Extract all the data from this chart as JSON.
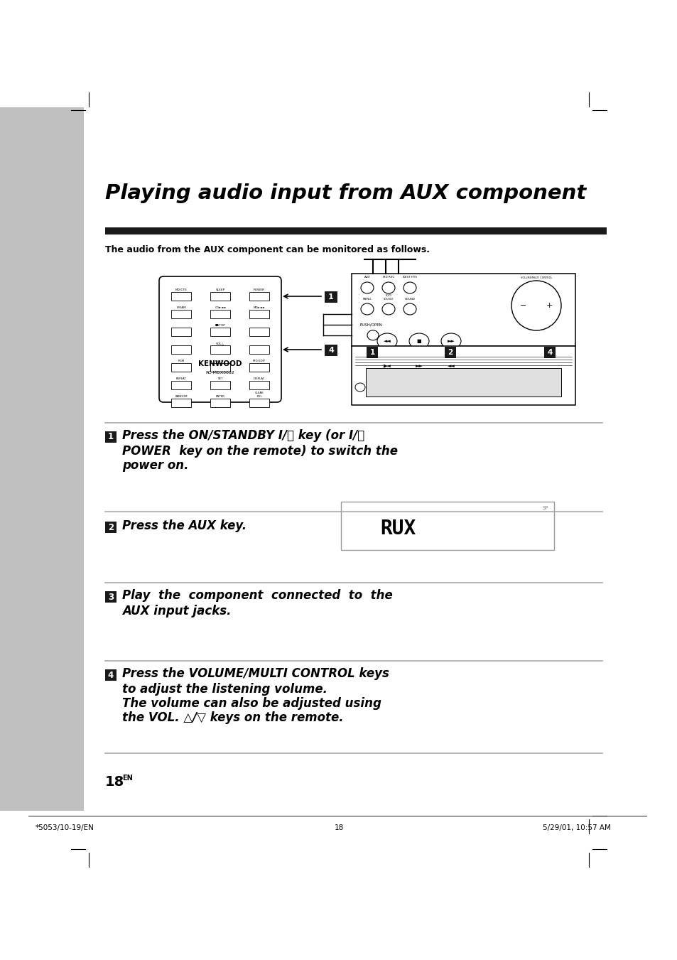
{
  "page_bg": "#ffffff",
  "gray_sidebar_color": "#c0c0c0",
  "title": "Playing audio input from AUX component",
  "subtitle": "The audio from the AUX component can be monitored as follows.",
  "step1_line1": "Press the ON/STANDBY Ⅰ/⌛ key (or Ⅰ/⌛",
  "step1_line2": "POWER  key on the remote) to switch the",
  "step1_line3": "power on.",
  "step2_text": "Press the AUX key.",
  "step3_line1": "Play  the  component  connected  to  the",
  "step3_line2": "AUX input jacks.",
  "step4_line1": "Press the VOLUME/MULTI CONTROL keys",
  "step4_line2": "to adjust the listening volume.",
  "step4_line3": "The volume can also be adjusted using",
  "step4_line4": "the VOL. △/▽ keys on the remote.",
  "aux_display": "RUX",
  "aux_sp": "SP",
  "footer_left": "*5053/10-19/EN",
  "footer_center": "18",
  "footer_right": "5/29/01, 10:57 AM",
  "page_number": "18",
  "superscript": "EN",
  "title_bar_color": "#1a1a1a",
  "divider_color": "#aaaaaa",
  "badge_color": "#1a1a1a"
}
